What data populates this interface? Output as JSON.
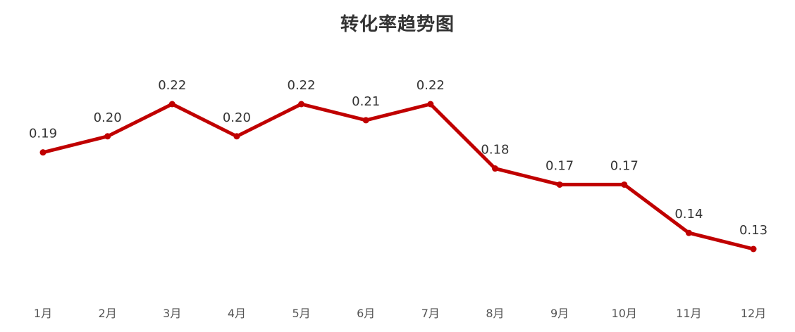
{
  "chart_data": {
    "type": "line",
    "title": "转化率趋势图",
    "categories": [
      "1月",
      "2月",
      "3月",
      "4月",
      "5月",
      "6月",
      "7月",
      "8月",
      "9月",
      "10月",
      "11月",
      "12月"
    ],
    "series": [
      {
        "values": [
          0.19,
          0.2,
          0.22,
          0.2,
          0.22,
          0.21,
          0.22,
          0.18,
          0.17,
          0.17,
          0.14,
          0.13
        ],
        "labels": [
          "0.19",
          "0.20",
          "0.22",
          "0.20",
          "0.22",
          "0.21",
          "0.22",
          "0.18",
          "0.17",
          "0.17",
          "0.14",
          "0.13"
        ]
      }
    ],
    "grid": false,
    "legend": "none",
    "colors": {
      "line": "#C00000",
      "title": "#333333",
      "labels": "#333333",
      "ticks": "#555555"
    }
  }
}
